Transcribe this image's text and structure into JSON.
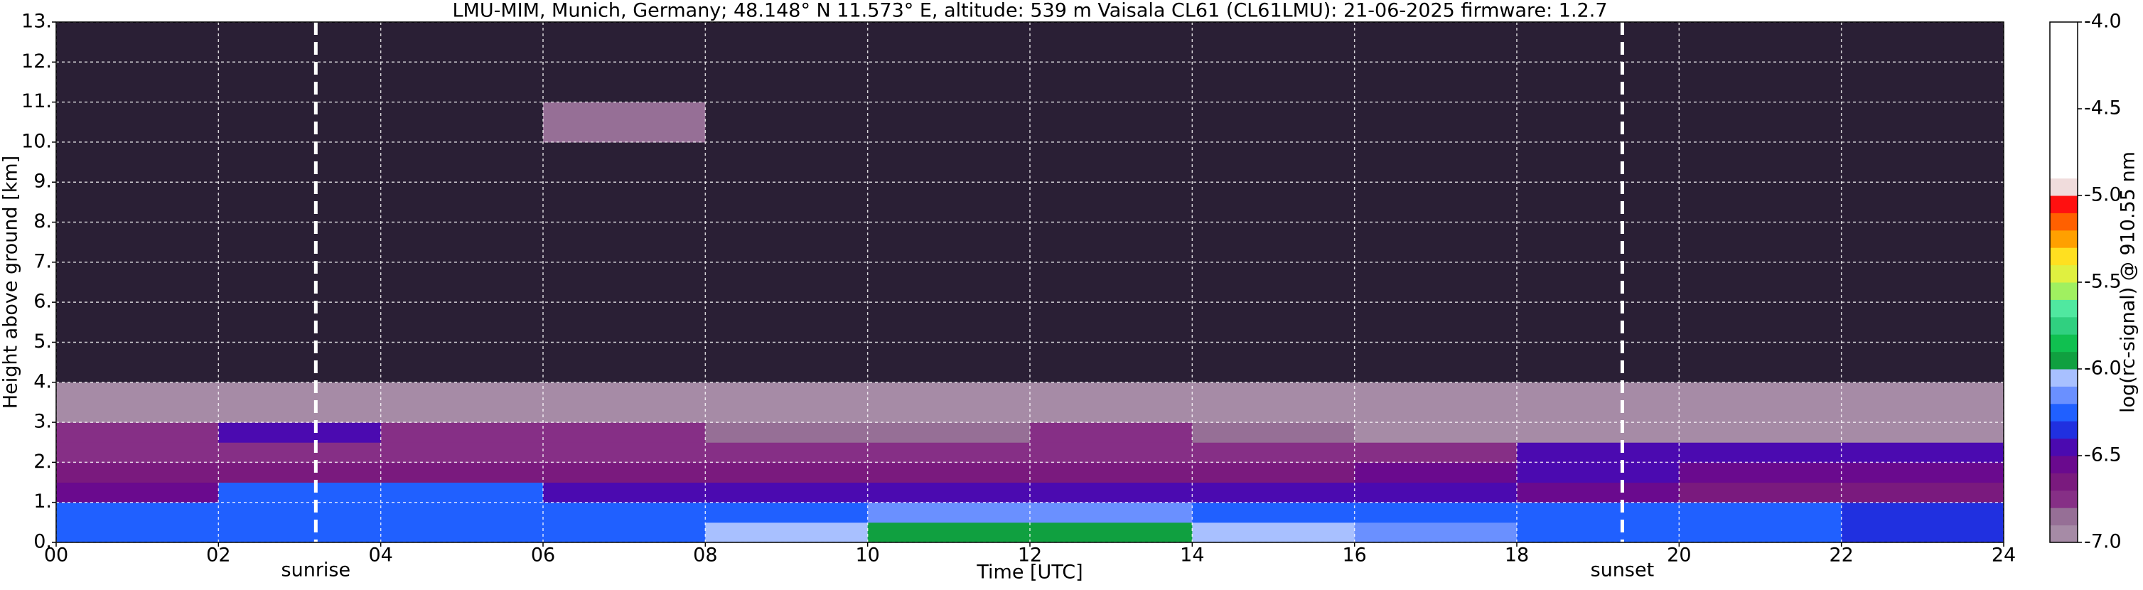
{
  "chart_data": {
    "type": "heatmap",
    "title": "LMU-MIM, Munich, Germany; 48.148° N 11.573° E, altitude: 539 m    Vaisala CL61 (CL61LMU): 21-06-2025    firmware: 1.2.7",
    "x_label": "Time [UTC]",
    "y_label": "Height above ground [km]",
    "colorbar_label": "log(rc-signal) @ 910.55 nm",
    "x": [
      0,
      2,
      4,
      6,
      8,
      10,
      12,
      14,
      16,
      18,
      20,
      22,
      24
    ],
    "y": [
      0,
      0.5,
      1,
      1.5,
      2,
      2.5,
      3,
      4,
      6,
      8,
      10,
      11,
      13
    ],
    "z": [
      [
        -6.2,
        -6.2,
        -6.2,
        -6.2,
        -6.05,
        -6.0,
        -6.0,
        -6.05,
        -6.15,
        -6.2,
        -6.25,
        -6.35
      ],
      [
        -6.2,
        -6.2,
        -6.2,
        -6.25,
        -6.2,
        -6.15,
        -6.15,
        -6.2,
        -6.2,
        -6.25,
        -6.3,
        -6.35
      ],
      [
        -6.55,
        -6.3,
        -6.3,
        -6.4,
        -6.45,
        -6.4,
        -6.4,
        -6.45,
        -6.5,
        -6.6,
        -6.65,
        -6.65
      ],
      [
        -6.65,
        -6.65,
        -6.65,
        -6.65,
        -6.65,
        -6.65,
        -6.65,
        -6.65,
        -6.6,
        -6.5,
        -6.55,
        -6.6
      ],
      [
        -6.75,
        -6.75,
        -6.8,
        -6.8,
        -6.8,
        -6.8,
        -6.75,
        -6.75,
        -6.8,
        -6.5,
        -6.5,
        -6.5
      ],
      [
        -6.7,
        -6.4,
        -6.75,
        -6.8,
        -6.85,
        -6.85,
        -6.8,
        -6.85,
        -6.9,
        -6.9,
        -6.9,
        -6.9
      ],
      [
        -6.95,
        -6.95,
        -6.95,
        -6.95,
        -6.95,
        -6.95,
        -6.95,
        -6.95,
        -6.95,
        -6.95,
        -6.95,
        -6.95
      ],
      [
        -7.2,
        -7.2,
        -7.2,
        -7.2,
        -7.2,
        -7.2,
        -7.2,
        -7.2,
        -7.2,
        -7.2,
        -7.2,
        -7.2
      ],
      [
        -7.2,
        -7.2,
        -7.2,
        -7.2,
        -7.2,
        -7.2,
        -7.2,
        -7.2,
        -7.2,
        -7.2,
        -7.2,
        -7.2
      ],
      [
        -7.2,
        -7.2,
        -7.2,
        -7.2,
        -7.2,
        -7.2,
        -7.2,
        -7.2,
        -7.2,
        -7.2,
        -7.2,
        -7.2
      ],
      [
        -7.2,
        -7.2,
        -7.2,
        -6.85,
        -7.2,
        -7.2,
        -7.2,
        -7.2,
        -7.2,
        -7.2,
        -7.2,
        -7.2
      ],
      [
        -7.2,
        -7.2,
        -7.2,
        -7.2,
        -7.2,
        -7.2,
        -7.2,
        -7.2,
        -7.2,
        -7.2,
        -7.2,
        -7.2
      ]
    ],
    "xlim": [
      0,
      24
    ],
    "ylim": [
      0,
      13
    ],
    "xticks": [
      {
        "value": 0,
        "label": "00"
      },
      {
        "value": 2,
        "label": "02"
      },
      {
        "value": 4,
        "label": "04"
      },
      {
        "value": 6,
        "label": "06"
      },
      {
        "value": 8,
        "label": "08"
      },
      10,
      12,
      14,
      16,
      18,
      20,
      22,
      24
    ],
    "yticks": [
      {
        "value": 0,
        "label": "0."
      },
      {
        "value": 1,
        "label": "1."
      },
      {
        "value": 2,
        "label": "2."
      },
      {
        "value": 3,
        "label": "3."
      },
      {
        "value": 4,
        "label": "4."
      },
      {
        "value": 5,
        "label": "5."
      },
      {
        "value": 6,
        "label": "6."
      },
      {
        "value": 7,
        "label": "7."
      },
      {
        "value": 8,
        "label": "8."
      },
      {
        "value": 9,
        "label": "9."
      },
      {
        "value": 10,
        "label": "10."
      },
      {
        "value": 11,
        "label": "11."
      },
      {
        "value": 12,
        "label": "12."
      },
      {
        "value": 13,
        "label": "13."
      }
    ],
    "clim": [
      -7,
      -4
    ],
    "cticks": [
      {
        "value": -7,
        "label": "-7.0"
      },
      {
        "value": -6.5,
        "label": "-6.5"
      },
      {
        "value": -6,
        "label": "-6.0"
      },
      {
        "value": -5.5,
        "label": "-5.5"
      },
      {
        "value": -5,
        "label": "-5.0"
      },
      {
        "value": -4.5,
        "label": "-4.5"
      },
      {
        "value": -4,
        "label": "-4.0"
      }
    ],
    "colormap": [
      "#a68ba6",
      "#966f96",
      "#862f86",
      "#7a1a7e",
      "#6a0a8e",
      "#4b0ab0",
      "#2030e0",
      "#2060ff",
      "#6a90ff",
      "#a8c0ff",
      "#10a040",
      "#10c050",
      "#30d080",
      "#50e8a0",
      "#a0f060",
      "#e0f040",
      "#ffe020",
      "#ffa000",
      "#ff6000",
      "#ff1010",
      "#f0dcdc",
      "#ffffff",
      "#ffffff",
      "#ffffff",
      "#ffffff",
      "#ffffff",
      "#ffffff",
      "#ffffff",
      "#ffffff",
      "#ffffff"
    ],
    "under_color": "#2a1f35",
    "grid": true,
    "annotations": [
      {
        "text": "sunrise",
        "x": 3.2
      },
      {
        "text": "sunset",
        "x": 19.3
      }
    ]
  }
}
